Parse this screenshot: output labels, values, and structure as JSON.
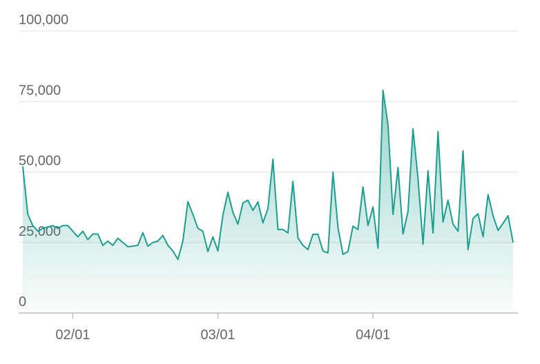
{
  "chart_data": {
    "type": "area",
    "x": [
      "01/22",
      "01/23",
      "01/24",
      "01/25",
      "01/26",
      "01/27",
      "01/28",
      "01/29",
      "01/30",
      "01/31",
      "02/01",
      "02/02",
      "02/03",
      "02/04",
      "02/05",
      "02/06",
      "02/07",
      "02/08",
      "02/09",
      "02/10",
      "02/11",
      "02/12",
      "02/13",
      "02/14",
      "02/15",
      "02/16",
      "02/17",
      "02/18",
      "02/19",
      "02/20",
      "02/21",
      "02/22",
      "02/23",
      "02/24",
      "02/25",
      "02/26",
      "02/27",
      "02/28",
      "02/29",
      "03/01",
      "03/02",
      "03/03",
      "03/04",
      "03/05",
      "03/06",
      "03/07",
      "03/08",
      "03/09",
      "03/10",
      "03/11",
      "03/12",
      "03/13",
      "03/14",
      "03/15",
      "03/16",
      "03/17",
      "03/18",
      "03/19",
      "03/20",
      "03/21",
      "03/22",
      "03/23",
      "03/24",
      "03/25",
      "03/26",
      "03/27",
      "03/28",
      "03/29",
      "03/30",
      "03/31",
      "04/01",
      "04/02",
      "04/03",
      "04/04",
      "04/05",
      "04/06",
      "04/07",
      "04/08",
      "04/09",
      "04/10",
      "04/11",
      "04/12",
      "04/13",
      "04/14",
      "04/15",
      "04/16",
      "04/17",
      "04/18",
      "04/19",
      "04/20",
      "04/21",
      "04/22",
      "04/23",
      "04/24",
      "04/25",
      "04/26",
      "04/27",
      "04/28",
      "04/29"
    ],
    "series": [
      {
        "color": "#1a9e8f",
        "values": [
          52000,
          35000,
          31000,
          29000,
          30000,
          30500,
          31000,
          30000,
          31000,
          31000,
          29000,
          27000,
          29000,
          26000,
          28000,
          28000,
          24000,
          25500,
          24000,
          26500,
          25000,
          23500,
          23700,
          24000,
          28500,
          23700,
          25000,
          25500,
          27500,
          24000,
          22000,
          19000,
          25500,
          39500,
          35000,
          30000,
          29000,
          21800,
          27000,
          22000,
          34700,
          42800,
          35700,
          31500,
          39000,
          40000,
          36400,
          39400,
          32000,
          37000,
          54500,
          29600,
          29600,
          28400,
          46700,
          26600,
          24000,
          22500,
          27900,
          27900,
          22000,
          21300,
          50000,
          30300,
          20800,
          21800,
          30800,
          29600,
          44700,
          31000,
          37600,
          23000,
          79000,
          66700,
          35000,
          51600,
          28000,
          36000,
          65300,
          47700,
          24400,
          50400,
          28400,
          64300,
          32300,
          40000,
          31500,
          29000,
          57500,
          22500,
          33500,
          35200,
          27000,
          42000,
          34500,
          29300,
          31800,
          34500,
          25000
        ]
      }
    ],
    "ylim": [
      0,
      100000
    ],
    "yticks": [
      0,
      {
        "value": 25000,
        "label": "25,000"
      },
      {
        "value": 50000,
        "label": "50,000"
      },
      {
        "value": 75000,
        "label": "75,000"
      },
      {
        "value": 100000,
        "label": "100,000"
      }
    ],
    "xticks": [
      "02/01",
      "03/01",
      "04/01"
    ],
    "grid": true
  }
}
